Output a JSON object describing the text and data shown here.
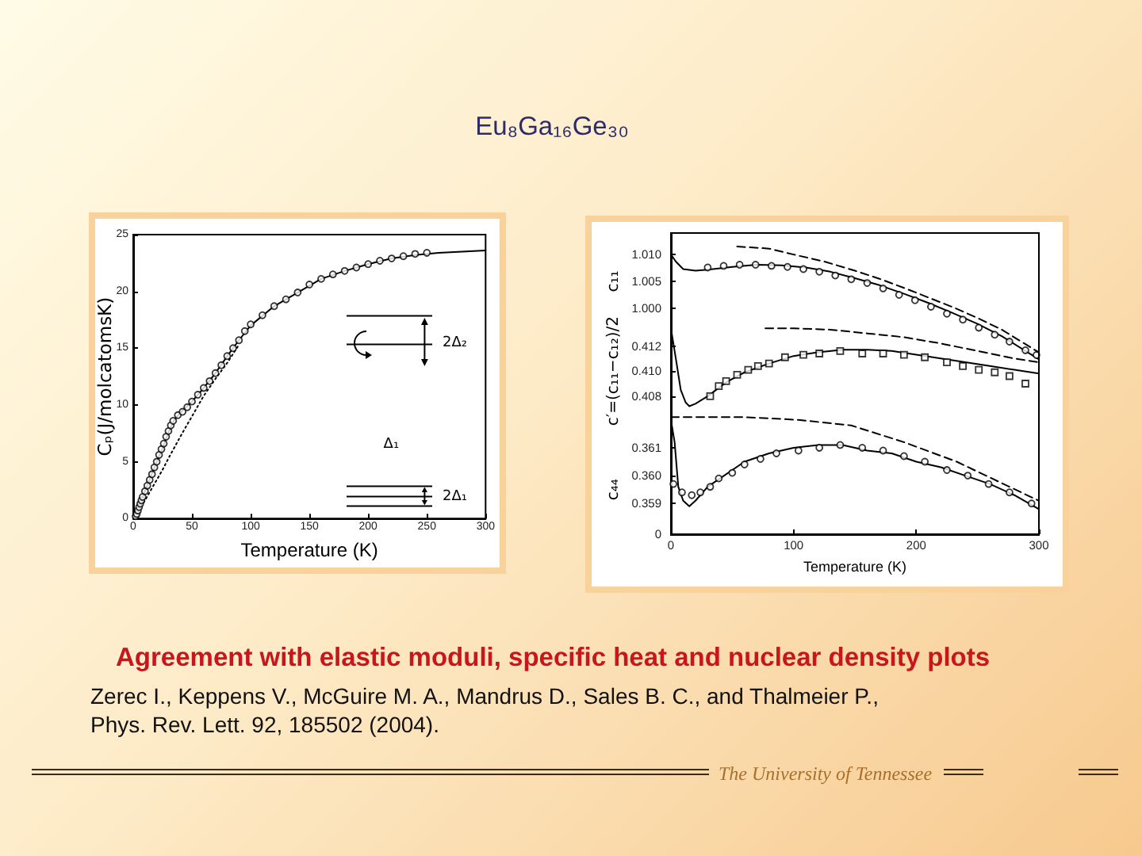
{
  "chart_data": [
    {
      "type": "line",
      "title": "Eu₈Ga₁₆Ge₃₀",
      "xlabel": "Temperature (K)",
      "ylabel": "Cₚ(J/molcatomsK)",
      "xlim": [
        0,
        300
      ],
      "xticks": [
        0,
        50,
        100,
        150,
        200,
        250,
        300
      ],
      "ylim": [
        0,
        25
      ],
      "yticks": [
        0,
        5,
        10,
        15,
        20,
        25
      ],
      "series": [
        {
          "color": "#000000",
          "line_style": "solid",
          "x": [
            0,
            5,
            10,
            15,
            20,
            25,
            30,
            35,
            40,
            50,
            60,
            70,
            80,
            90,
            100,
            120,
            140,
            160,
            180,
            200,
            220,
            240,
            260,
            280,
            300
          ],
          "values": [
            0,
            1.1,
            2.4,
            3.7,
            5.0,
            6.2,
            7.6,
            8.7,
            9.3,
            10.3,
            11.5,
            12.8,
            14.3,
            15.7,
            17.0,
            18.7,
            19.9,
            21.1,
            21.8,
            22.4,
            22.9,
            23.2,
            23.4,
            23.5,
            23.6
          ]
        },
        {
          "color": "#000000",
          "line_style": "dotted",
          "x": [
            0,
            10,
            20,
            25,
            30,
            40,
            50,
            60,
            70,
            80,
            90
          ],
          "values": [
            0,
            1.6,
            3.4,
            4.3,
            5.3,
            7.2,
            9.0,
            10.8,
            12.3,
            13.7,
            15.3
          ]
        },
        {
          "type": "scatter",
          "marker": "circle",
          "color": "#000000",
          "x": [
            2,
            3,
            4,
            5,
            6,
            7,
            8,
            10,
            12,
            14,
            16,
            18,
            20,
            22,
            24,
            26,
            28,
            30,
            32,
            34,
            38,
            42,
            46,
            50,
            55,
            60,
            65,
            70,
            75,
            80,
            85,
            90,
            95,
            100,
            110,
            120,
            130,
            140,
            150,
            160,
            170,
            180,
            190,
            200,
            210,
            220,
            230,
            240,
            250
          ],
          "values": [
            0.2,
            0.4,
            0.7,
            1.0,
            1.3,
            1.6,
            1.9,
            2.4,
            2.9,
            3.4,
            3.9,
            4.5,
            5.0,
            5.6,
            6.1,
            6.6,
            7.2,
            7.7,
            8.2,
            8.6,
            9.1,
            9.4,
            9.8,
            10.3,
            10.9,
            11.5,
            12.1,
            12.8,
            13.5,
            14.3,
            15.0,
            15.7,
            16.5,
            17.1,
            17.9,
            18.7,
            19.3,
            19.9,
            20.6,
            21.1,
            21.5,
            21.8,
            22.1,
            22.4,
            22.7,
            22.9,
            23.1,
            23.3,
            23.4
          ]
        }
      ],
      "annotations": [
        "2Δ₂",
        "Δ₁",
        "2Δ₁",
        "Agreement with elastic moduli, specific heat and nuclear density plots",
        "Zerec I., Keppens V., McGuire M. A., Mandrus D., Sales B. C., and Thalmeier P.,",
        "Phys. Rev. Lett. 92, 185502 (2004).",
        "The University of Tennessee"
      ]
    },
    {
      "type": "line",
      "ylabel": "c₁₁",
      "xlim": [
        0,
        300
      ],
      "xticks": [
        0,
        100,
        200,
        300
      ],
      "tick_labels": "y",
      "ylim": [
        0.958,
        1.014
      ],
      "yticks": [
        {
          "value": 1,
          "label": "1.000"
        },
        1.005,
        {
          "value": 1.01,
          "label": "1.010"
        }
      ],
      "series": [
        {
          "color": "#000000",
          "line_style": "solid",
          "x": [
            0,
            4,
            10,
            20,
            30,
            50,
            70,
            90,
            110,
            130,
            150,
            170,
            190,
            210,
            230,
            250,
            270,
            300
          ],
          "values": [
            1.01,
            1.0087,
            1.0073,
            1.007,
            1.0072,
            1.0077,
            1.0081,
            1.008,
            1.0076,
            1.0068,
            1.0056,
            1.0043,
            1.0027,
            1.001,
            0.9991,
            0.9971,
            0.9948,
            0.9905
          ]
        },
        {
          "color": "#000000",
          "line_style": "dashed",
          "x": [
            54,
            80,
            100,
            125,
            150,
            170,
            190,
            210,
            230,
            250,
            270,
            300
          ],
          "values": [
            1.0115,
            1.0111,
            1.01,
            1.0087,
            1.007,
            1.0055,
            1.0038,
            1.002,
            1.0002,
            0.9982,
            0.996,
            0.9918
          ]
        },
        {
          "type": "scatter",
          "marker": "circle",
          "color": "#000000",
          "x": [
            30,
            43,
            56,
            69,
            82,
            95,
            108,
            121,
            134,
            147,
            160,
            173,
            186,
            199,
            212,
            225,
            238,
            251,
            264,
            276,
            289,
            298
          ],
          "values": [
            1.0076,
            1.0079,
            1.0081,
            1.0081,
            1.0079,
            1.0077,
            1.0073,
            1.0068,
            1.0061,
            1.0054,
            1.0047,
            1.0037,
            1.0025,
            1.0015,
            1.0003,
            0.999,
            0.9979,
            0.9964,
            0.9951,
            0.9938,
            0.9922,
            0.9913
          ]
        }
      ]
    },
    {
      "type": "line",
      "ylabel": "c′=(c₁₁−c₁₂)/2",
      "xlim": [
        0,
        300
      ],
      "xticks": [
        0,
        100,
        200,
        300
      ],
      "tick_labels": "y",
      "ylim": [
        0.397,
        0.421
      ],
      "yticks": [
        0.408,
        {
          "value": 0.41,
          "label": "0.410"
        },
        0.412
      ],
      "series": [
        {
          "color": "#000000",
          "line_style": "solid",
          "x": [
            0,
            4,
            8,
            12,
            15,
            20,
            30,
            45,
            60,
            80,
            100,
            120,
            140,
            160,
            180,
            200,
            220,
            240,
            260,
            280,
            300
          ],
          "values": [
            0.4134,
            0.411,
            0.4085,
            0.4075,
            0.4072,
            0.4074,
            0.408,
            0.4091,
            0.4099,
            0.4106,
            0.4112,
            0.4115,
            0.4117,
            0.4117,
            0.4116,
            0.4113,
            0.411,
            0.4107,
            0.4104,
            0.4101,
            0.4098
          ]
        },
        {
          "color": "#000000",
          "line_style": "dashed",
          "x": [
            77,
            100,
            130,
            160,
            190,
            220,
            250,
            280,
            300
          ],
          "values": [
            0.4134,
            0.4134,
            0.4133,
            0.413,
            0.4127,
            0.4122,
            0.4116,
            0.411,
            0.4107
          ]
        },
        {
          "type": "scatter",
          "marker": "square",
          "color": "#000000",
          "x": [
            32,
            39,
            45,
            54,
            63,
            71,
            80,
            93,
            108,
            121,
            138,
            156,
            173,
            190,
            207,
            225,
            238,
            251,
            264,
            276,
            289
          ],
          "values": [
            0.408,
            0.4088,
            0.4092,
            0.4097,
            0.4101,
            0.4104,
            0.4106,
            0.4111,
            0.4113,
            0.4114,
            0.4116,
            0.4114,
            0.4114,
            0.4113,
            0.4111,
            0.4107,
            0.4104,
            0.4101,
            0.4099,
            0.4096,
            0.409
          ]
        }
      ]
    },
    {
      "type": "line",
      "xlabel": "Temperature (K)",
      "ylabel": "c₄₄",
      "xlim": [
        0,
        300
      ],
      "xticks": [
        0,
        100,
        200,
        300
      ],
      "ylim": [
        0.3579,
        0.3687
      ],
      "yticks": [
        {
          "value": 0.3579,
          "label": "0"
        },
        0.359,
        {
          "value": 0.36,
          "label": "0.360"
        },
        0.361
      ],
      "series": [
        {
          "color": "#000000",
          "line_style": "solid",
          "x": [
            0,
            3,
            6,
            10,
            15,
            20,
            30,
            40,
            60,
            80,
            100,
            120,
            140,
            160,
            180,
            200,
            220,
            240,
            260,
            280,
            300
          ],
          "values": [
            0.362,
            0.3612,
            0.3596,
            0.3591,
            0.3589,
            0.3591,
            0.3596,
            0.3599,
            0.3605,
            0.3608,
            0.361,
            0.3611,
            0.3611,
            0.3609,
            0.3608,
            0.3605,
            0.3603,
            0.36,
            0.3597,
            0.3593,
            0.3588
          ]
        },
        {
          "color": "#000000",
          "line_style": "dashed",
          "x": [
            0,
            60,
            104,
            147,
            190,
            233,
            276,
            300
          ],
          "values": [
            0.3621,
            0.3621,
            0.362,
            0.3618,
            0.3612,
            0.3605,
            0.3596,
            0.3591
          ]
        },
        {
          "type": "scatter",
          "marker": "circle",
          "color": "#000000",
          "x": [
            2,
            9,
            17,
            24,
            32,
            39,
            50,
            60,
            73,
            86,
            104,
            121,
            138,
            156,
            173,
            190,
            207,
            225,
            242,
            259,
            276,
            294
          ],
          "values": [
            0.3597,
            0.3594,
            0.3593,
            0.3594,
            0.3596,
            0.3599,
            0.3601,
            0.3604,
            0.3606,
            0.3608,
            0.3609,
            0.361,
            0.3611,
            0.361,
            0.3609,
            0.3607,
            0.3605,
            0.3602,
            0.36,
            0.3597,
            0.3594,
            0.359
          ]
        }
      ]
    }
  ]
}
